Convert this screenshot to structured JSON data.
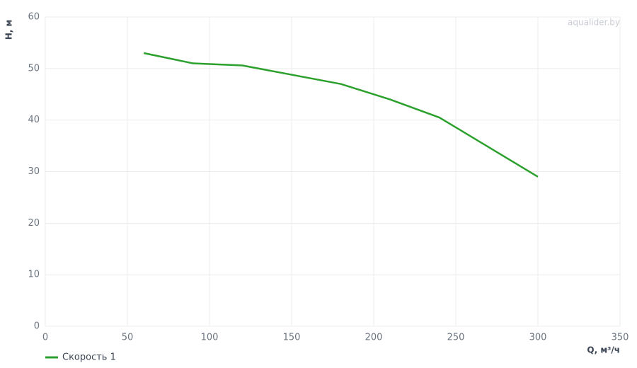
{
  "chart_data": {
    "type": "line",
    "x_label": "Q, м³/ч",
    "y_label": "H, м",
    "annotation": "aqualider.by",
    "x": [
      60,
      90,
      120,
      180,
      210,
      240,
      300
    ],
    "series": [
      {
        "name": "Скорость 1",
        "color": "#2ca02c",
        "values": [
          53,
          51,
          50.6,
          47,
          44,
          40.5,
          29
        ]
      }
    ],
    "xlim": [
      0,
      350
    ],
    "xticks": [
      0,
      50,
      100,
      150,
      200,
      250,
      300,
      350
    ],
    "ylim": [
      0,
      60
    ],
    "yticks": [
      0,
      10,
      20,
      30,
      40,
      50,
      60
    ],
    "grid": true,
    "legend": "bottom-left"
  }
}
